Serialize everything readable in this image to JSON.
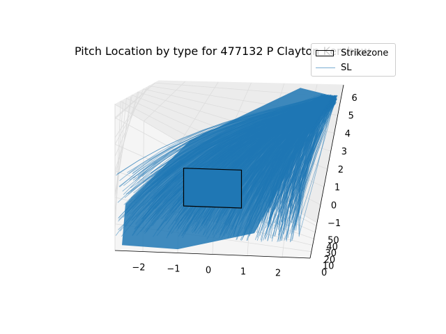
{
  "chart_data": {
    "type": "line",
    "title": "Pitch Location by type for 477132 P Clayton Kershaw",
    "title_visible": "Pitch Location by type for 477132 P Clayton Kershaw",
    "projection": "3d",
    "x_axis": {
      "ticks": [
        -2,
        -1,
        0,
        1,
        2
      ],
      "range": [
        -2.8,
        2.8
      ],
      "label": ""
    },
    "y_axis": {
      "ticks": [
        0,
        10,
        20,
        30,
        40,
        50
      ],
      "range": [
        0,
        55
      ],
      "label": ""
    },
    "z_axis": {
      "ticks": [
        -1,
        0,
        1,
        2,
        3,
        4,
        5,
        6
      ],
      "range": [
        -1,
        6.7
      ],
      "label": ""
    },
    "grid": true,
    "legend": {
      "placement": "top-right",
      "entries": [
        "Strikezone",
        "SL"
      ]
    },
    "series": [
      {
        "name": "Strikezone",
        "kind": "rectangle",
        "x": [
          -0.83,
          0.83
        ],
        "y": 0,
        "z": [
          1.5,
          3.5
        ],
        "color": "#000000"
      },
      {
        "name": "SL",
        "kind": "trajectories",
        "color": "#1f77b4",
        "release_point": {
          "x": 2.5,
          "y": 50,
          "z": 6
        },
        "plate_x_range": [
          -2.8,
          2.5
        ],
        "plate_z_range": [
          -1,
          4
        ]
      }
    ]
  },
  "colors": {
    "pane": "#f2f2f2",
    "grid": "#e6e6e6",
    "series": "#1f77b4",
    "zone": "#000000"
  }
}
